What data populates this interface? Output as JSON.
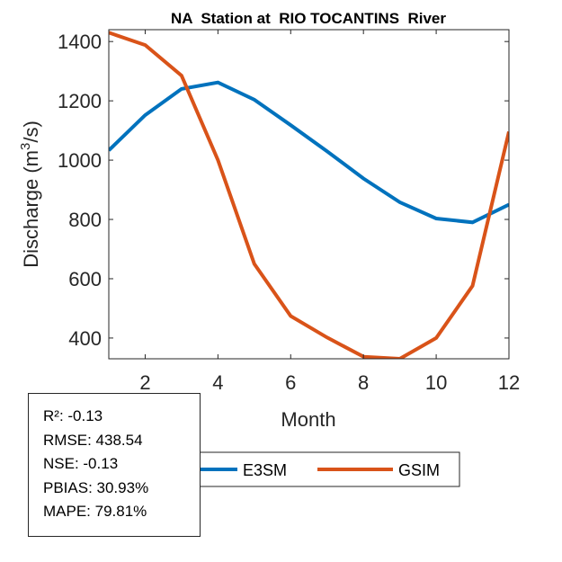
{
  "chart_data": {
    "type": "line",
    "title": "NA  Station at  RIO TOCANTINS  River",
    "xlabel": "Month",
    "ylabel": "Discharge (m³/s)",
    "ylabel_parts": {
      "pre": "Discharge (m",
      "sup": "3",
      "post": "/s)"
    },
    "xlim": [
      1,
      12
    ],
    "ylim": [
      330,
      1440
    ],
    "xticks": [
      2,
      4,
      6,
      8,
      10,
      12
    ],
    "yticks": [
      400,
      600,
      800,
      1000,
      1200,
      1400
    ],
    "grid": false,
    "legend_position": "bottom",
    "x": [
      1,
      2,
      3,
      4,
      5,
      6,
      7,
      8,
      9,
      10,
      11,
      12
    ],
    "series": [
      {
        "name": "E3SM",
        "color": "#0072BD",
        "values": [
          1033,
          1152,
          1240,
          1262,
          1204,
          1118,
          1030,
          938,
          858,
          803,
          790,
          850
        ]
      },
      {
        "name": "GSIM",
        "color": "#D95319",
        "values": [
          1430,
          1388,
          1285,
          1000,
          650,
          474,
          402,
          337,
          330,
          400,
          576,
          1096
        ]
      }
    ]
  },
  "stats": [
    "R²: -0.13",
    "RMSE: 438.54",
    "NSE: -0.13",
    "PBIAS: 30.93%",
    "MAPE: 79.81%"
  ]
}
